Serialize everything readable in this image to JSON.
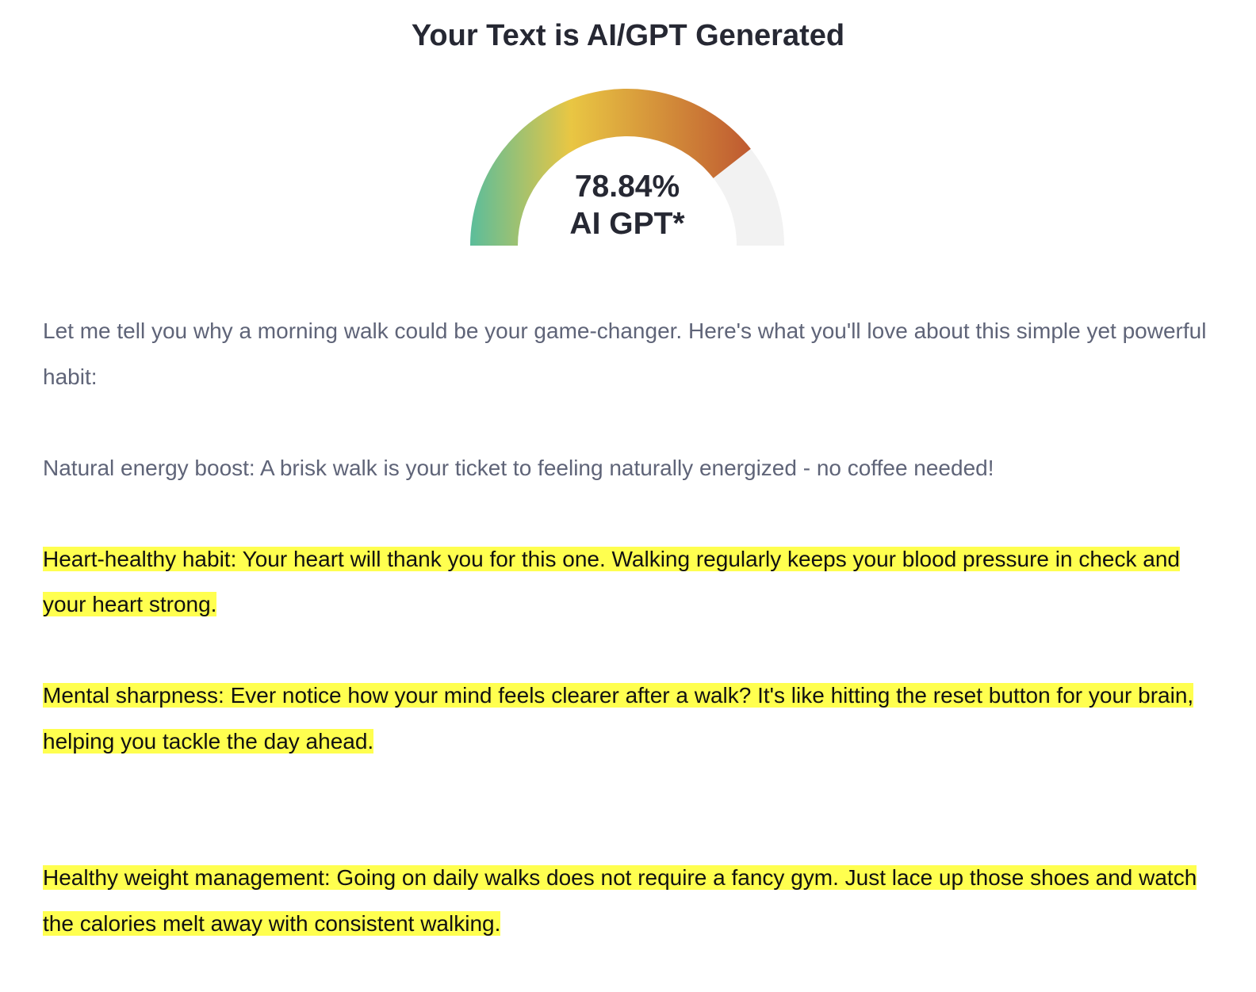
{
  "title": "Your Text is AI/GPT Generated",
  "gauge": {
    "percent": 78.84,
    "value_label": "78.84%",
    "sub_label": "AI GPT*",
    "colors": {
      "start": "#5bbd9b",
      "mid": "#e9c643",
      "end": "#bf5a31",
      "track": "#f2f2f2"
    }
  },
  "paragraphs": [
    {
      "sentences": [
        {
          "text": "Let me tell you why a morning walk could be your game-changer. Here's what you'll love about this simple yet powerful habit:",
          "highlighted": false
        }
      ]
    },
    {
      "sentences": [
        {
          "text": "Natural energy boost: A brisk walk is your ticket to feeling naturally energized - no coffee needed!",
          "highlighted": false
        }
      ]
    },
    {
      "sentences": [
        {
          "text": "Heart-healthy habit: Your heart will thank you for this one. ",
          "highlighted": true
        },
        {
          "text": "Walking regularly keeps your blood pressure in check and your heart strong.",
          "highlighted": true
        }
      ]
    },
    {
      "sentences": [
        {
          "text": "Mental sharpness: Ever notice how your mind feels clearer after a walk? ",
          "highlighted": true
        },
        {
          "text": "It's like hitting the reset button for your brain, helping you tackle the day ahead.",
          "highlighted": true
        }
      ]
    },
    {
      "sentences": [
        {
          "text": "Healthy weight management: Going on daily walks does not require a fancy gym. ",
          "highlighted": true
        },
        {
          "text": "Just lace up those shoes and watch the calories melt away with consistent walking.",
          "highlighted": true
        }
      ]
    }
  ],
  "highlight_color": "#ffff4f"
}
